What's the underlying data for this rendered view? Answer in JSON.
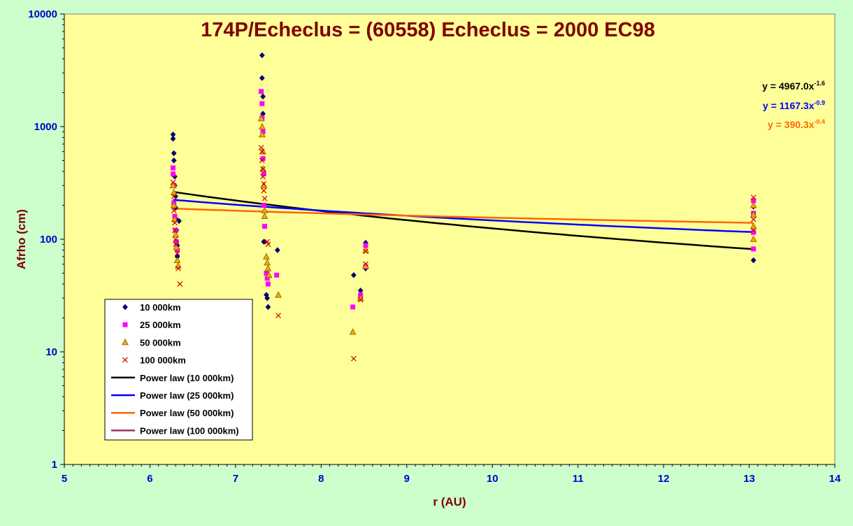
{
  "chart_data": {
    "type": "scatter",
    "title": "174P/Echeclus = (60558) Echeclus = 2000 EC98",
    "xlabel": "r (AU)",
    "ylabel": "Afrho (cm)",
    "x_scale": "linear",
    "y_scale": "log",
    "xlim": [
      5,
      14
    ],
    "ylim": [
      1,
      10000
    ],
    "x_ticks": [
      "5",
      "6",
      "7",
      "8",
      "9",
      "10",
      "11",
      "12",
      "13",
      "14"
    ],
    "y_ticks": [
      "1",
      "10",
      "100",
      "1000",
      "10000"
    ],
    "legend_position": "bottom-left",
    "series": [
      {
        "name": "10 000km",
        "marker": "diamond",
        "color": "#000080",
        "points": [
          [
            6.27,
            850
          ],
          [
            6.27,
            780
          ],
          [
            6.28,
            580
          ],
          [
            6.28,
            500
          ],
          [
            6.29,
            360
          ],
          [
            6.29,
            300
          ],
          [
            6.3,
            240
          ],
          [
            6.3,
            190
          ],
          [
            6.31,
            150
          ],
          [
            6.31,
            120
          ],
          [
            6.32,
            88
          ],
          [
            6.32,
            70
          ],
          [
            6.34,
            145
          ],
          [
            7.31,
            4300
          ],
          [
            7.31,
            2700
          ],
          [
            7.32,
            1850
          ],
          [
            7.32,
            1300
          ],
          [
            7.33,
            95
          ],
          [
            7.36,
            32
          ],
          [
            7.37,
            30
          ],
          [
            7.38,
            25
          ],
          [
            7.49,
            80
          ],
          [
            8.38,
            48
          ],
          [
            8.46,
            35
          ],
          [
            8.52,
            93
          ],
          [
            8.52,
            55
          ],
          [
            13.05,
            195
          ],
          [
            13.05,
            65
          ]
        ]
      },
      {
        "name": "25 000km",
        "marker": "square",
        "color": "#ff00ff",
        "points": [
          [
            6.27,
            430
          ],
          [
            6.27,
            380
          ],
          [
            6.28,
            300
          ],
          [
            6.28,
            210
          ],
          [
            6.29,
            160
          ],
          [
            6.3,
            120
          ],
          [
            6.31,
            95
          ],
          [
            6.32,
            80
          ],
          [
            7.3,
            2050
          ],
          [
            7.31,
            1600
          ],
          [
            7.31,
            1200
          ],
          [
            7.32,
            900
          ],
          [
            7.32,
            520
          ],
          [
            7.33,
            380
          ],
          [
            7.33,
            200
          ],
          [
            7.34,
            130
          ],
          [
            7.36,
            50
          ],
          [
            7.37,
            45
          ],
          [
            7.38,
            40
          ],
          [
            7.48,
            48
          ],
          [
            8.37,
            25
          ],
          [
            8.46,
            32
          ],
          [
            8.52,
            88
          ],
          [
            8.52,
            57
          ],
          [
            13.05,
            220
          ],
          [
            13.05,
            170
          ],
          [
            13.05,
            115
          ],
          [
            13.05,
            82
          ]
        ]
      },
      {
        "name": "50 000km",
        "marker": "triangle",
        "color": "#ffa500",
        "points": [
          [
            6.27,
            300
          ],
          [
            6.28,
            260
          ],
          [
            6.28,
            200
          ],
          [
            6.29,
            150
          ],
          [
            6.3,
            110
          ],
          [
            6.31,
            85
          ],
          [
            6.32,
            65
          ],
          [
            6.33,
            58
          ],
          [
            7.3,
            1180
          ],
          [
            7.31,
            1000
          ],
          [
            7.31,
            850
          ],
          [
            7.32,
            600
          ],
          [
            7.32,
            420
          ],
          [
            7.33,
            300
          ],
          [
            7.34,
            180
          ],
          [
            7.34,
            160
          ],
          [
            7.36,
            70
          ],
          [
            7.37,
            62
          ],
          [
            7.38,
            55
          ],
          [
            7.39,
            48
          ],
          [
            7.5,
            32
          ],
          [
            8.37,
            15
          ],
          [
            8.46,
            30
          ],
          [
            8.52,
            80
          ],
          [
            8.52,
            58
          ],
          [
            13.05,
            200
          ],
          [
            13.05,
            165
          ],
          [
            13.05,
            130
          ],
          [
            13.05,
            100
          ]
        ]
      },
      {
        "name": "100 000km",
        "marker": "x",
        "color": "#cc0000",
        "points": [
          [
            6.27,
            320
          ],
          [
            6.28,
            240
          ],
          [
            6.28,
            180
          ],
          [
            6.29,
            140
          ],
          [
            6.29,
            120
          ],
          [
            6.3,
            100
          ],
          [
            6.3,
            90
          ],
          [
            6.32,
            75
          ],
          [
            6.33,
            55
          ],
          [
            6.35,
            40
          ],
          [
            7.3,
            650
          ],
          [
            7.31,
            600
          ],
          [
            7.31,
            500
          ],
          [
            7.32,
            420
          ],
          [
            7.32,
            360
          ],
          [
            7.33,
            310
          ],
          [
            7.33,
            270
          ],
          [
            7.34,
            230
          ],
          [
            7.37,
            95
          ],
          [
            7.38,
            90
          ],
          [
            7.5,
            21
          ],
          [
            8.38,
            8.7
          ],
          [
            8.46,
            29
          ],
          [
            8.52,
            78
          ],
          [
            8.52,
            60
          ],
          [
            13.05,
            235
          ],
          [
            13.05,
            150
          ],
          [
            13.05,
            120
          ]
        ]
      }
    ],
    "trendlines": [
      {
        "name": "Power law (10 000km)",
        "color": "#000000",
        "a": 4967.0,
        "b": -1.6,
        "x_range": [
          6.27,
          13.05
        ]
      },
      {
        "name": "Power law (25 000km)",
        "color": "#0000ff",
        "a": 1167.3,
        "b": -0.9,
        "x_range": [
          6.27,
          13.05
        ]
      },
      {
        "name": "Power law (50 000km)",
        "color": "#ff6600",
        "a": 390.3,
        "b": -0.4,
        "x_range": [
          6.27,
          13.05
        ]
      },
      {
        "name": "Power law (100 000km)",
        "color": "#993366",
        "a": null,
        "b": null,
        "x_range": null
      }
    ],
    "equations": [
      {
        "text": "y = 4967.0x",
        "exponent": "-1.6",
        "color": "#000000"
      },
      {
        "text": "y = 1167.3x",
        "exponent": "-0.9",
        "color": "#0000ff"
      },
      {
        "text": "y = 390.3x",
        "exponent": "-0.4",
        "color": "#ff6600"
      }
    ]
  }
}
